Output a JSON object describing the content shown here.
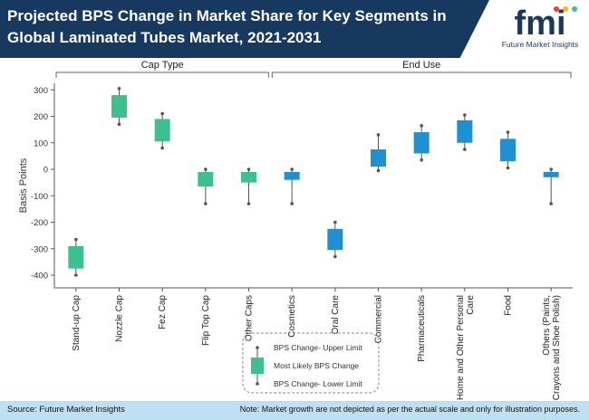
{
  "header": {
    "title": "Projected BPS Change in Market Share for Key Segments in Global Laminated Tubes Market, 2021-2031",
    "logo_text": "Future Market Insights",
    "logo_letters": "fmi"
  },
  "footer": {
    "source": "Source: Future Market Insights",
    "note": "Note: Market growth are not depicted as per the actual scale and only for illustration purposes."
  },
  "colors": {
    "header_bg": "#17385f",
    "footer_bg": "#bfe0f3",
    "cap_type": "#3cc08f",
    "end_use": "#1e8fd0"
  },
  "chart_data": {
    "type": "box",
    "ylabel": "Basis Points",
    "ylim": [
      -430,
      330
    ],
    "yticks": [
      300,
      200,
      100,
      0,
      -100,
      -200,
      -300,
      -400
    ],
    "groups": [
      {
        "label": "Cap Type",
        "categories": [
          "Stand-up Cap",
          "Nozzle Cap",
          "Fez Cap",
          "Flip Top Cap",
          "Other Caps"
        ]
      },
      {
        "label": "End Use",
        "categories": [
          "Cosmetics",
          "Oral Care",
          "Commercial",
          "Pharmaceuticals",
          "Home and Other Personal Care",
          "Food",
          "Others (Paints, Crayons and Shoe Polish)"
        ]
      }
    ],
    "series": [
      {
        "category": "Stand-up Cap",
        "group": "Cap Type",
        "upper": -265,
        "box_high": -290,
        "box_low": -375,
        "lower": -400
      },
      {
        "category": "Nozzle Cap",
        "group": "Cap Type",
        "upper": 305,
        "box_high": 280,
        "box_low": 195,
        "lower": 170
      },
      {
        "category": "Fez Cap",
        "group": "Cap Type",
        "upper": 210,
        "box_high": 190,
        "box_low": 105,
        "lower": 80
      },
      {
        "category": "Flip Top Cap",
        "group": "Cap Type",
        "upper": 0,
        "box_high": -10,
        "box_low": -65,
        "lower": -130
      },
      {
        "category": "Other Caps",
        "group": "Cap Type",
        "upper": 0,
        "box_high": -10,
        "box_low": -50,
        "lower": -130
      },
      {
        "category": "Cosmetics",
        "group": "End Use",
        "upper": 0,
        "box_high": -10,
        "box_low": -40,
        "lower": -130
      },
      {
        "category": "Oral Care",
        "group": "End Use",
        "upper": -200,
        "box_high": -225,
        "box_low": -305,
        "lower": -330
      },
      {
        "category": "Commercial",
        "group": "End Use",
        "upper": 130,
        "box_high": 75,
        "box_low": 10,
        "lower": -5
      },
      {
        "category": "Pharmaceuticals",
        "group": "End Use",
        "upper": 165,
        "box_high": 140,
        "box_low": 60,
        "lower": 35
      },
      {
        "category": "Home and Other Personal Care",
        "group": "End Use",
        "upper": 205,
        "box_high": 185,
        "box_low": 100,
        "lower": 75
      },
      {
        "category": "Food",
        "group": "End Use",
        "upper": 140,
        "box_high": 115,
        "box_low": 30,
        "lower": 5
      },
      {
        "category": "Others (Paints, Crayons and Shoe Polish)",
        "group": "End Use",
        "upper": 0,
        "box_high": -10,
        "box_low": -30,
        "lower": -130
      }
    ],
    "legend": {
      "upper": "BPS Change- Upper Limit",
      "middle": "Most Likely BPS Change",
      "lower": "BPS Change- Lower Limit"
    }
  }
}
